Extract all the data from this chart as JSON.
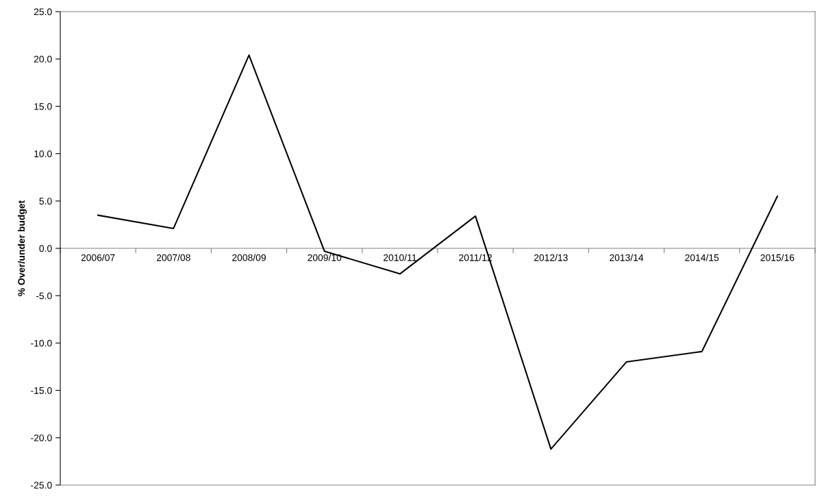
{
  "chart_data": {
    "type": "line",
    "ylabel": "% Over/under budget",
    "categories": [
      "2006/07",
      "2007/08",
      "2008/09",
      "2009/10",
      "2010/11",
      "2011/12",
      "2012/13",
      "2013/14",
      "2014/15",
      "2015/16"
    ],
    "values": [
      3.5,
      2.1,
      20.4,
      -0.3,
      -2.7,
      3.4,
      -21.2,
      -12.0,
      -10.9,
      5.5
    ],
    "color": "#000000",
    "ylim": [
      -25,
      25
    ],
    "yticks": [
      {
        "value": -25,
        "label": "-25.0"
      },
      {
        "value": -20,
        "label": "-20.0"
      },
      {
        "value": -15,
        "label": "-15.0"
      },
      {
        "value": -10,
        "label": "-10.0"
      },
      {
        "value": -5,
        "label": "-5.0"
      },
      {
        "value": 0,
        "label": "0.0"
      },
      {
        "value": 5,
        "label": "5.0"
      },
      {
        "value": 10,
        "label": "10.0"
      },
      {
        "value": 15,
        "label": "15.0"
      },
      {
        "value": 20,
        "label": "20.0"
      },
      {
        "value": 25,
        "label": "25.0"
      }
    ]
  }
}
